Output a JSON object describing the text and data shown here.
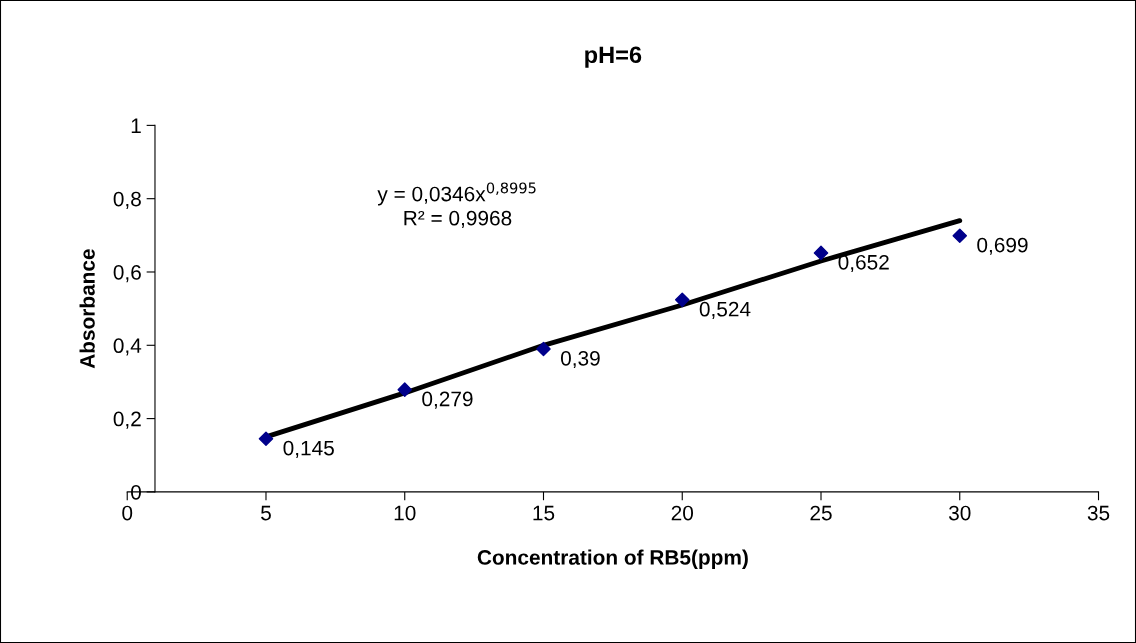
{
  "chart_data": {
    "type": "scatter",
    "title": "pH=6",
    "xlabel": "Concentration of RB5(ppm)",
    "ylabel": "Absorbance",
    "x": [
      5,
      10,
      15,
      20,
      25,
      30
    ],
    "series": [
      {
        "color": "#00008b",
        "values": [
          0.145,
          0.279,
          0.39,
          0.524,
          0.652,
          0.699
        ],
        "value_labels": [
          "0,145",
          "0,279",
          "0,39",
          "0,524",
          "0,652",
          "0,699"
        ],
        "marker": "diamond"
      },
      {
        "type": "line",
        "color": "#000000",
        "x": [
          5,
          10,
          15,
          20,
          25,
          30
        ],
        "values": [
          0.15,
          0.27,
          0.4,
          0.51,
          0.63,
          0.74
        ],
        "marker": "none",
        "line_style": "solid"
      }
    ],
    "annotations": [
      "y = 0,0346x$^{0,8995}$\nR² = 0,9968"
    ],
    "xlim": [
      0,
      35
    ],
    "xticks": [
      0,
      5,
      10,
      15,
      20,
      25,
      30,
      35
    ],
    "ylim": [
      0,
      1
    ],
    "yticks": [
      0,
      {
        "value": 0.2,
        "label": "0,2"
      },
      {
        "value": 0.4,
        "label": "0,4"
      },
      {
        "value": 0.6,
        "label": "0,6"
      },
      {
        "value": 0.8,
        "label": "0,8"
      },
      1
    ],
    "grid": false,
    "legend": false
  }
}
